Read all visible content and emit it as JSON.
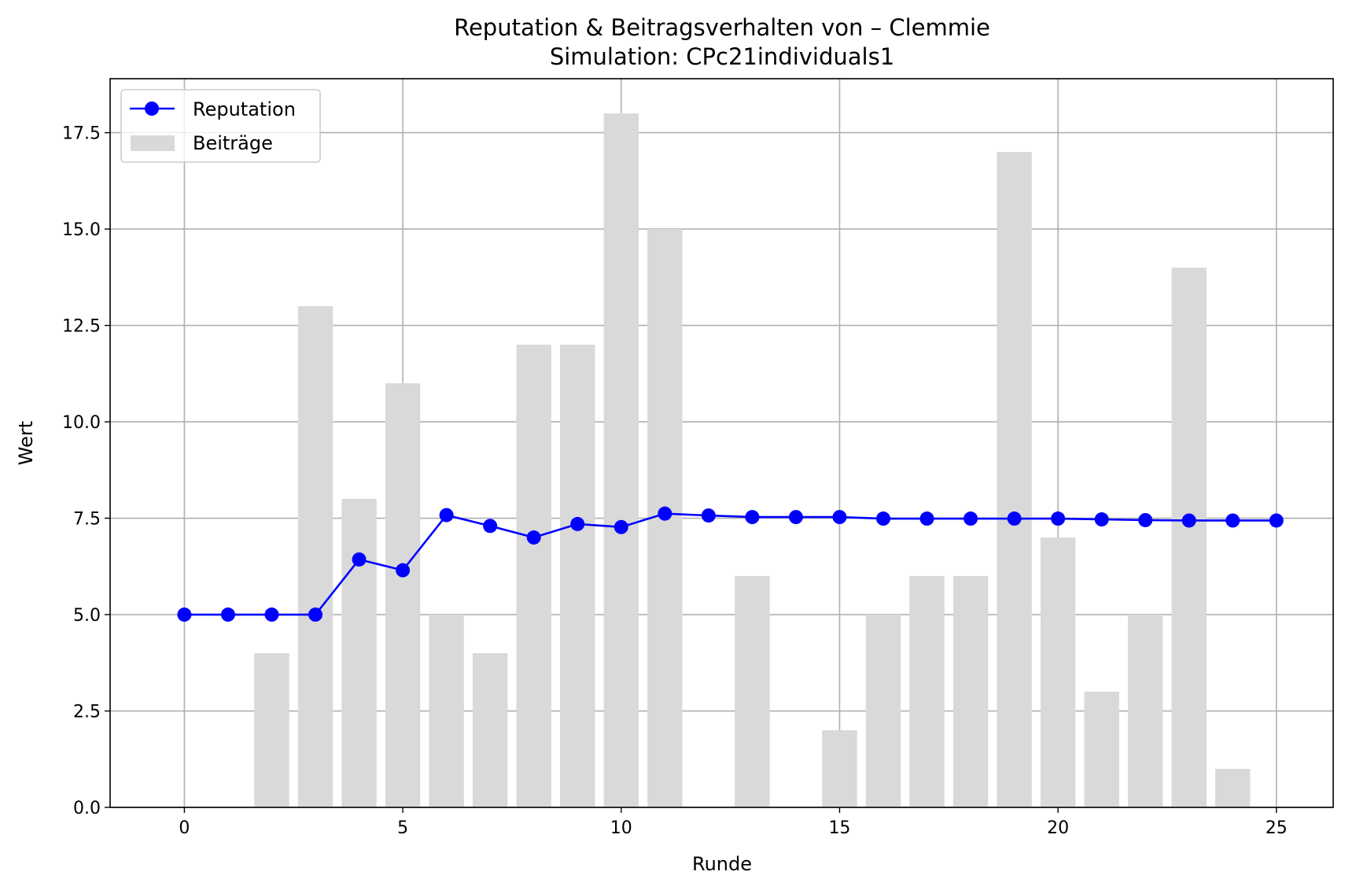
{
  "chart_data": {
    "type": "bar",
    "title": "Reputation & Beitragsverhalten von – Clemmie",
    "subtitle": "Simulation: CPc21individuals1",
    "xlabel": "Runde",
    "ylabel": "Wert",
    "xlim": [
      -1.7,
      26.3
    ],
    "ylim": [
      0,
      18.9
    ],
    "xticks": [
      0,
      5,
      10,
      15,
      20,
      25
    ],
    "yticks": [
      0.0,
      2.5,
      5.0,
      7.5,
      10.0,
      12.5,
      15.0,
      17.5
    ],
    "xtick_labels": [
      "0",
      "5",
      "10",
      "15",
      "20",
      "25"
    ],
    "ytick_labels": [
      "0.0",
      "2.5",
      "5.0",
      "7.5",
      "10.0",
      "12.5",
      "15.0",
      "17.5"
    ],
    "grid": true,
    "legend_position": "top-left",
    "x": [
      0,
      1,
      2,
      3,
      4,
      5,
      6,
      7,
      8,
      9,
      10,
      11,
      12,
      13,
      14,
      15,
      16,
      17,
      18,
      19,
      20,
      21,
      22,
      23,
      24,
      25
    ],
    "series": [
      {
        "name": "Reputation",
        "kind": "line",
        "color": "#0000ff",
        "marker": "circle",
        "values": [
          5.0,
          5.0,
          5.0,
          5.0,
          6.43,
          6.15,
          7.58,
          7.3,
          7.0,
          7.35,
          7.27,
          7.62,
          7.57,
          7.53,
          7.53,
          7.53,
          7.49,
          7.49,
          7.49,
          7.49,
          7.49,
          7.47,
          7.45,
          7.44,
          7.44,
          7.44
        ]
      },
      {
        "name": "Beiträge",
        "kind": "bar",
        "color": "#d9d9d9",
        "values": [
          0,
          0,
          4,
          13,
          8,
          11,
          5,
          4,
          12,
          12,
          18,
          15,
          0,
          6,
          0,
          2,
          5,
          6,
          6,
          17,
          7,
          3,
          5,
          14,
          1,
          0
        ]
      }
    ]
  }
}
